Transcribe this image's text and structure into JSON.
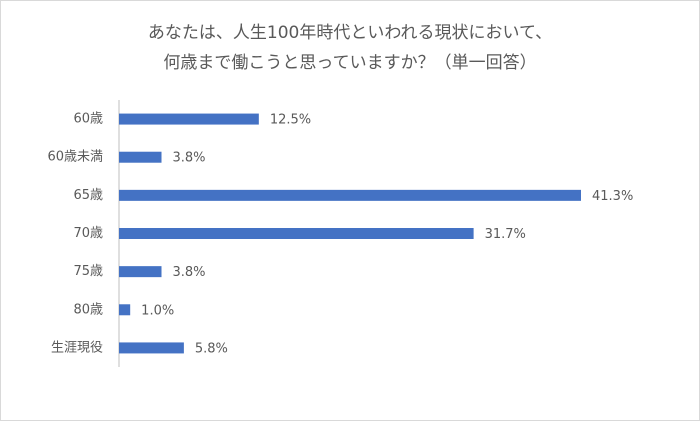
{
  "chart_data": {
    "type": "bar",
    "orientation": "horizontal",
    "title": [
      "あなたは、人生100年時代といわれる現状において、",
      "何歳まで働こうと思っていますか？（単一回答）"
    ],
    "categories": [
      "60歳",
      "60歳未満",
      "65歳",
      "70歳",
      "75歳",
      "80歳",
      "生涯現役"
    ],
    "values": [
      12.5,
      3.8,
      41.3,
      31.7,
      3.8,
      1.0,
      5.8
    ],
    "value_labels": [
      "12.5%",
      "3.8%",
      "41.3%",
      "31.7%",
      "3.8%",
      "1.0%",
      "5.8%"
    ],
    "color": "#4472c4"
  }
}
